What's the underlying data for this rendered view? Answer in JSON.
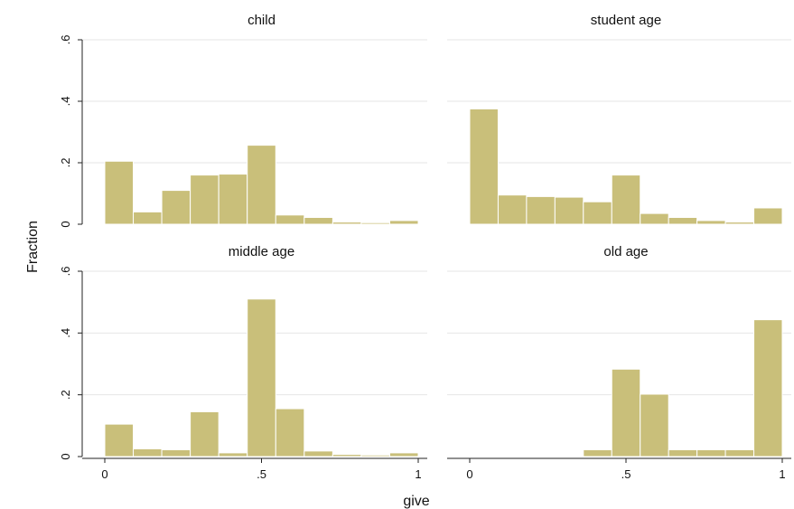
{
  "colors": {
    "bar": "#c9bf7a",
    "grid": "#e6e6e6",
    "axis": "#222222"
  },
  "chart_data": {
    "type": "bar",
    "layout": "2x2 small multiples, shared axes",
    "xlabel": "give",
    "ylabel": "Fraction",
    "xlim": [
      0,
      1
    ],
    "ylim": [
      0,
      0.6
    ],
    "y_ticks": [
      {
        "value": 0,
        "label": "0"
      },
      {
        "value": 0.2,
        "label": ".2"
      },
      {
        "value": 0.4,
        "label": ".4"
      },
      {
        "value": 0.6,
        "label": ".6"
      }
    ],
    "x_ticks": [
      {
        "value": 0,
        "label": "0"
      },
      {
        "value": 0.5,
        "label": ".5"
      },
      {
        "value": 1,
        "label": "1"
      }
    ],
    "grid": true,
    "bin_edges": [
      0,
      0.0909,
      0.1818,
      0.2727,
      0.3636,
      0.4545,
      0.5455,
      0.6364,
      0.7273,
      0.8182,
      0.9091,
      1.0
    ],
    "panels": [
      {
        "title": "child",
        "values": [
          0.205,
          0.04,
          0.11,
          0.16,
          0.163,
          0.257,
          0.03,
          0.022,
          0.007,
          0.005,
          0.012
        ]
      },
      {
        "title": "student age",
        "values": [
          0.375,
          0.095,
          0.09,
          0.088,
          0.073,
          0.16,
          0.035,
          0.022,
          0.012,
          0.007,
          0.053
        ]
      },
      {
        "title": "middle age",
        "values": [
          0.105,
          0.025,
          0.022,
          0.145,
          0.012,
          0.51,
          0.155,
          0.018,
          0.007,
          0.005,
          0.012
        ]
      },
      {
        "title": "old age",
        "values": [
          0,
          0,
          0,
          0,
          0.022,
          0.283,
          0.202,
          0.022,
          0.022,
          0.022,
          0.443
        ]
      }
    ]
  }
}
